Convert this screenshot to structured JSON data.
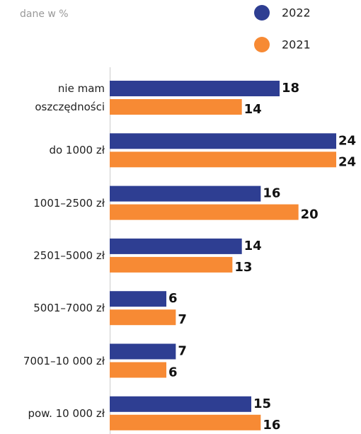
{
  "chart_data": {
    "type": "bar",
    "orientation": "horizontal",
    "subtitle": "dane w %",
    "categories": [
      "nie mam\noszczędności",
      "do 1000 zł",
      "1001–2500 zł",
      "2501–5000 zł",
      "5001–7000 zł",
      "7001–10 000 zł",
      "pow. 10 000 zł"
    ],
    "series": [
      {
        "name": "2022",
        "color": "#2e3e92",
        "values": [
          18,
          24,
          16,
          14,
          6,
          7,
          15
        ]
      },
      {
        "name": "2021",
        "color": "#f78a34",
        "values": [
          14,
          24,
          20,
          13,
          7,
          6,
          16
        ]
      }
    ],
    "legend": "top-right"
  }
}
